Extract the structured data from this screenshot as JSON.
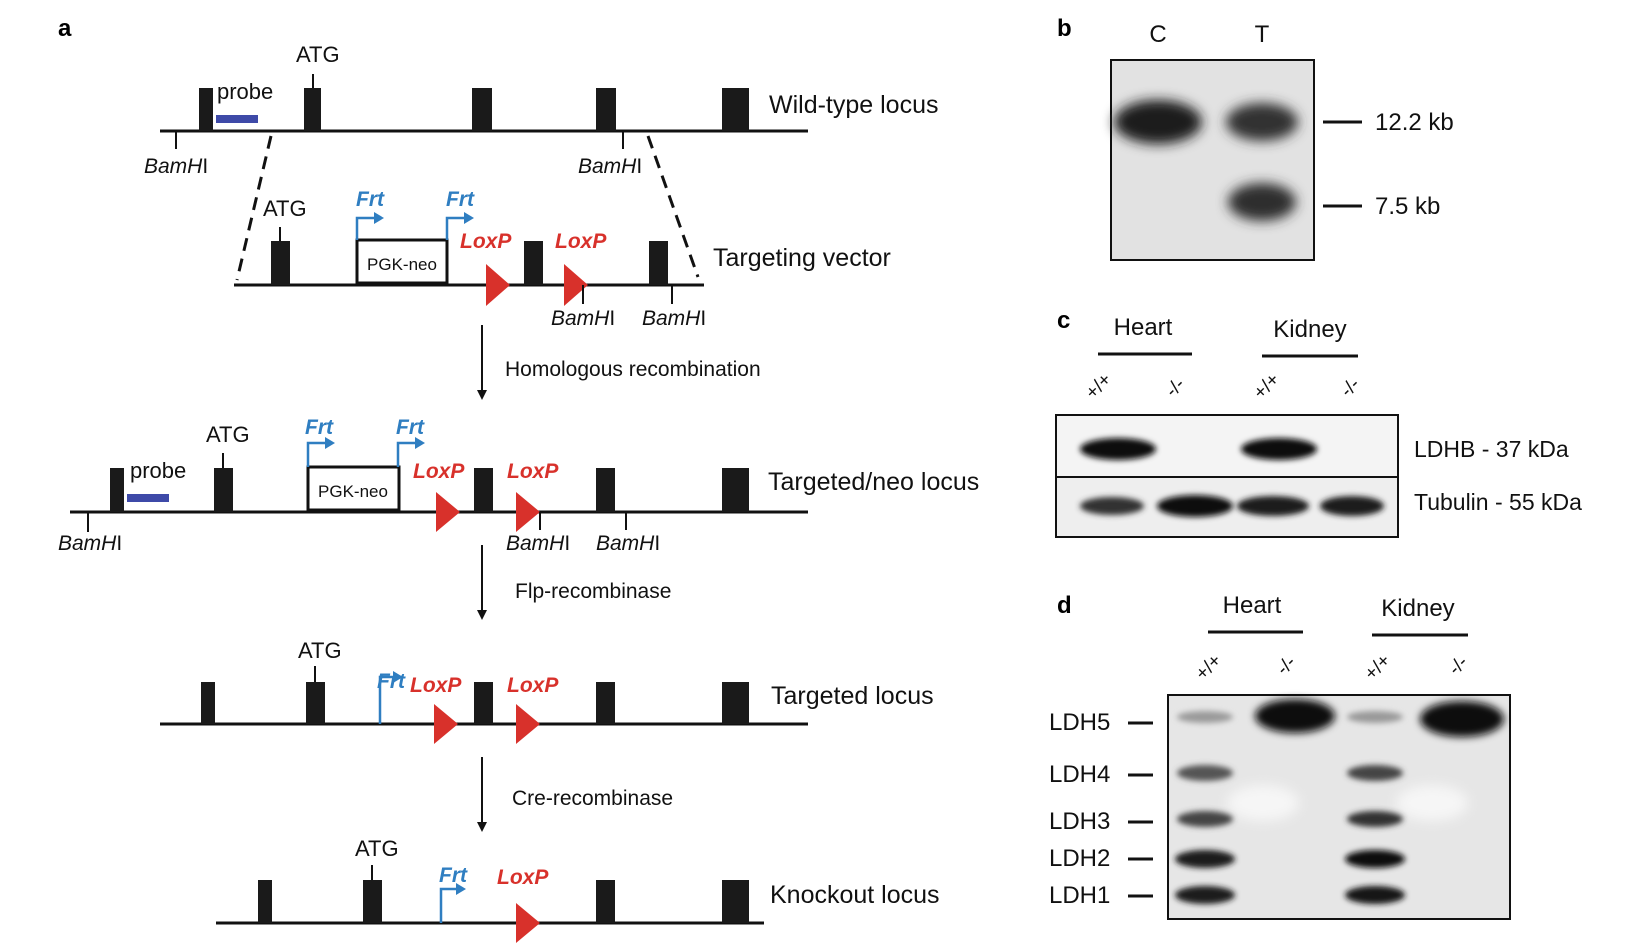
{
  "panel_a": {
    "letter": "a",
    "loci": [
      {
        "name": "Wild-type locus"
      },
      {
        "name": "Targeting vector"
      },
      {
        "name": "Targeted/neo locus"
      },
      {
        "name": "Targeted locus"
      },
      {
        "name": "Knockout locus"
      }
    ],
    "steps": [
      "Homologous recombination",
      "Flp-recombinase",
      "Cre-recombinase"
    ],
    "atg": "ATG",
    "probe": "probe",
    "bamh": "BamH",
    "bamh_suffix": "I",
    "frt": "Frt",
    "loxp": "LoxP",
    "pgkneo": "PGK-neo"
  },
  "panel_b": {
    "letter": "b",
    "lanes": [
      "C",
      "T"
    ],
    "markers": [
      "12.2 kb",
      "7.5 kb"
    ]
  },
  "panel_c": {
    "letter": "c",
    "tissues": [
      "Heart",
      "Kidney"
    ],
    "genotypes": [
      "+/+",
      "-/-",
      "+/+",
      "-/-"
    ],
    "bands": [
      "LDHB - 37 kDa",
      "Tubulin - 55 kDa"
    ]
  },
  "panel_d": {
    "letter": "d",
    "tissues": [
      "Heart",
      "Kidney"
    ],
    "genotypes": [
      "+/+",
      "-/-",
      "+/+",
      "-/-"
    ],
    "isozymes": [
      "LDH5",
      "LDH4",
      "LDH3",
      "LDH2",
      "LDH1"
    ]
  },
  "colors": {
    "frt_blue": "#2f7ec1",
    "loxp_red": "#d8312b",
    "probe_blue": "#3e4aa8",
    "exon": "#1a1a1a"
  }
}
